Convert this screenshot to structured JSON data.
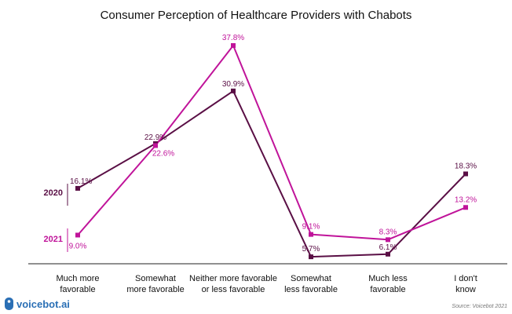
{
  "chart_data": {
    "type": "line",
    "title": "Consumer Perception of Healthcare  Providers with Chabots",
    "categories": [
      [
        "Much more",
        "favorable"
      ],
      [
        "Somewhat",
        "more favorable"
      ],
      [
        "Neither more favorable",
        "or less favorable"
      ],
      [
        "Somewhat",
        "less favorable"
      ],
      [
        "Much less",
        "favorable"
      ],
      [
        "I don't",
        "know"
      ]
    ],
    "series": [
      {
        "name": "2020",
        "color": "#5a0f45",
        "values": [
          16.1,
          22.9,
          30.9,
          5.7,
          6.1,
          18.3
        ],
        "labels": [
          "16.1%",
          "22.9%",
          "30.9%",
          "5.7%",
          "6.1%",
          "18.3%"
        ]
      },
      {
        "name": "2021",
        "color": "#c0149a",
        "values": [
          9.0,
          22.6,
          37.8,
          9.1,
          8.3,
          13.2
        ],
        "labels": [
          "9.0%",
          "22.6%",
          "37.8%",
          "9.1%",
          "8.3%",
          "13.2%"
        ]
      }
    ],
    "ylim": [
      5,
      38
    ],
    "grid": false,
    "legend": "left"
  },
  "brand": "voicebot.ai",
  "source": "Source: Voicebot 2021"
}
